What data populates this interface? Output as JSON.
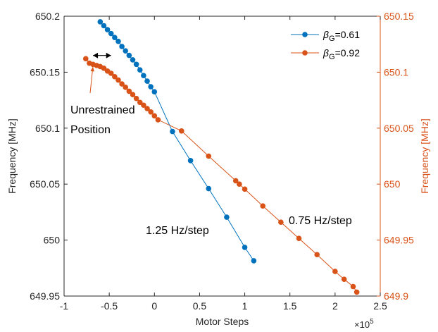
{
  "chart_data": {
    "type": "line",
    "title": "",
    "xlabel": "Motor Steps",
    "x_multiplier": "×10",
    "x_multiplier_exp": "5",
    "xlim": [
      -1,
      2.5
    ],
    "xticks": [
      -1,
      -0.5,
      0,
      0.5,
      1,
      1.5,
      2,
      2.5
    ],
    "xtick_labels": [
      "-1",
      "-0.5",
      "0",
      "0.5",
      "1",
      "1.5",
      "2",
      "2.5"
    ],
    "y_left": {
      "label": "Frequency [MHz]",
      "lim": [
        649.95,
        650.2
      ],
      "ticks": [
        649.95,
        650,
        650.05,
        650.1,
        650.15,
        650.2
      ],
      "tick_labels": [
        "649.95",
        "650",
        "650.05",
        "650.1",
        "650.15",
        "650.2"
      ],
      "color": "#262626"
    },
    "y_right": {
      "label": "Frequency [MHz]",
      "lim": [
        649.9,
        650.15
      ],
      "ticks": [
        649.9,
        649.95,
        650,
        650.05,
        650.1,
        650.15
      ],
      "tick_labels": [
        "649.9",
        "649.95",
        "650",
        "650.05",
        "650.1",
        "650.15"
      ],
      "color": "#d95319"
    },
    "legend_position": "top-right",
    "series": [
      {
        "beta_symbol": "β",
        "beta_sub": "G",
        "value_text": "=0.61",
        "axis": "left",
        "color": "#0072bd",
        "x": [
          -0.6,
          -0.56,
          -0.52,
          -0.48,
          -0.44,
          -0.4,
          -0.36,
          -0.32,
          -0.28,
          -0.24,
          -0.2,
          -0.16,
          -0.12,
          -0.08,
          -0.04,
          0,
          0.2,
          0.4,
          0.6,
          0.8,
          1.0,
          1.1
        ],
        "y": [
          650.195,
          650.1915,
          650.188,
          650.1845,
          650.181,
          650.1775,
          650.173,
          650.169,
          650.165,
          650.161,
          650.157,
          650.152,
          650.147,
          650.142,
          650.137,
          650.1325,
          650.097,
          650.071,
          650.046,
          650.0205,
          649.9935,
          649.9815
        ]
      },
      {
        "beta_symbol": "β",
        "beta_sub": "G",
        "value_text": "=0.92",
        "axis": "right",
        "color": "#d95319",
        "x": [
          -0.76,
          -0.72,
          -0.68,
          -0.64,
          -0.6,
          -0.56,
          -0.52,
          -0.48,
          -0.44,
          -0.4,
          -0.36,
          -0.32,
          -0.28,
          -0.24,
          -0.2,
          -0.16,
          -0.12,
          -0.08,
          -0.04,
          0,
          0.04,
          0.3,
          0.6,
          0.9,
          0.94,
          1.0,
          1.2,
          1.4,
          1.6,
          1.8,
          2.0,
          2.1,
          2.2,
          2.24
        ],
        "y": [
          650.112,
          650.108,
          650.107,
          650.106,
          650.105,
          650.1035,
          650.101,
          650.099,
          650.096,
          650.093,
          650.0895,
          650.0865,
          650.083,
          650.08,
          650.0765,
          650.073,
          650.0705,
          650.0675,
          650.0645,
          650.061,
          650.0575,
          650.0475,
          650.025,
          650.003,
          650.0,
          649.9955,
          649.9805,
          649.966,
          649.9515,
          649.937,
          649.922,
          649.915,
          649.9085,
          649.9035
        ]
      }
    ],
    "annotations": [
      {
        "lines": [
          "Unrestrained",
          "Position"
        ]
      },
      {
        "text": "1.25 Hz/step"
      },
      {
        "text": "0.75 Hz/step"
      }
    ]
  }
}
